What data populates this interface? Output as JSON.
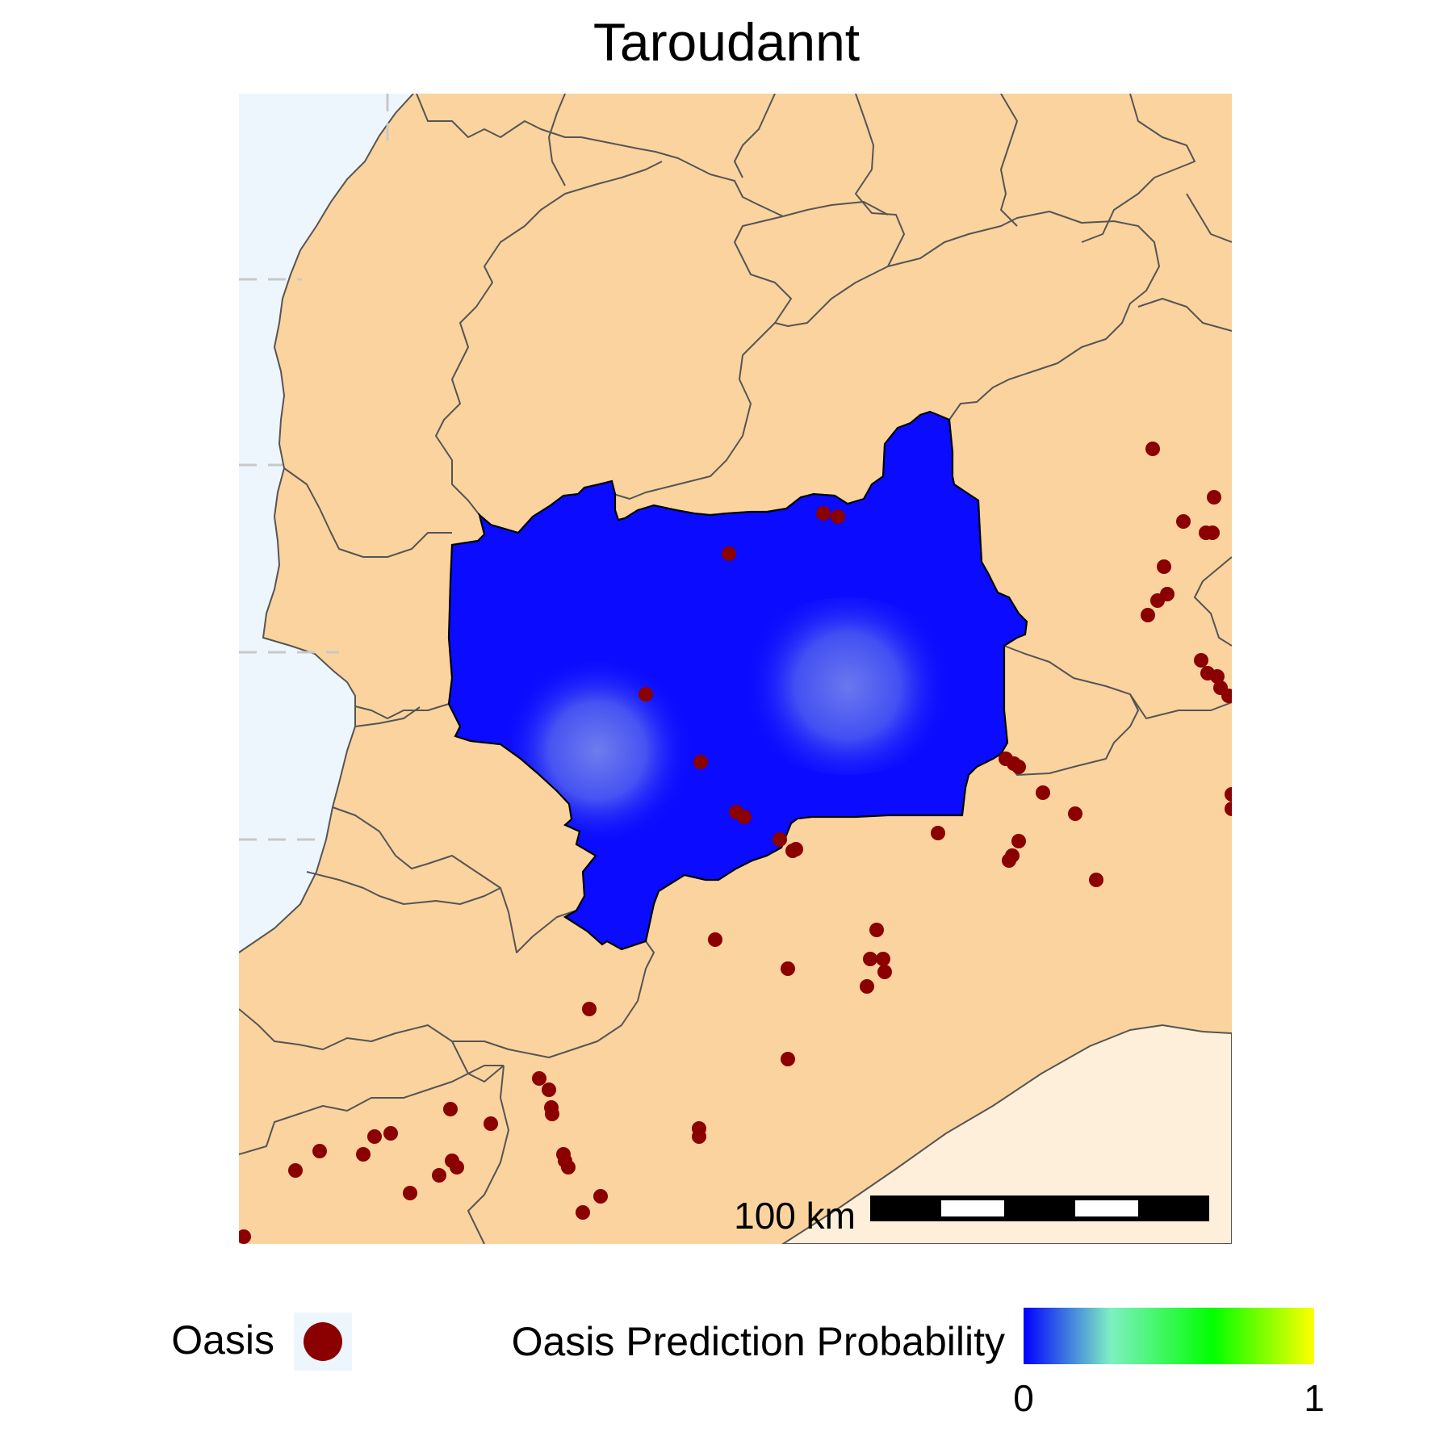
{
  "title": "Taroudannt",
  "map": {
    "colors": {
      "ocean": "#eef6fd",
      "land": "#fbd39f",
      "desert_region": "#fdefd9",
      "boundary": "#555555",
      "target_region_outline": "#000000",
      "oasis": "#8b0000"
    },
    "probability_surface": {
      "region": "Taroudannt",
      "typical_value": 0.03,
      "peak_value": 0.2
    }
  },
  "scale_bar": {
    "label": "100 km"
  },
  "legend": {
    "oasis_label": "Oasis",
    "probability_label": "Oasis Prediction Probability",
    "probability_min": "0",
    "probability_max": "1",
    "gradient_stops": [
      "#0000ff",
      "#7ef0c2",
      "#00ff00",
      "#ffff00"
    ]
  }
}
